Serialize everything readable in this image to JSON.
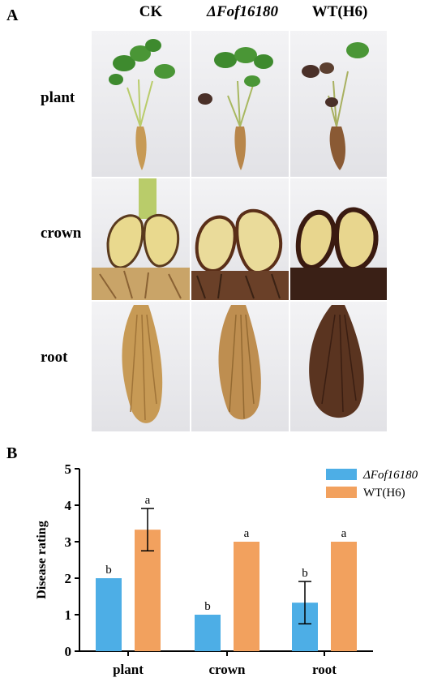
{
  "panel_a": {
    "letter": "A",
    "columns": [
      "CK",
      "ΔFof16180",
      "WT(H6)"
    ],
    "rows": [
      "plant",
      "crown",
      "root"
    ]
  },
  "panel_b": {
    "letter": "B"
  },
  "colors": {
    "mutant": "#4DAEE6",
    "wildtype": "#F2A15E",
    "photo_bg": "#ECECEE",
    "root_light": "#C79A55",
    "root_dark": "#5A3420",
    "leaf": "#3E8A2E",
    "stem": "#B9CC6A",
    "crown_tissue": "#E9D98E"
  },
  "chart_data": {
    "type": "bar",
    "categories": [
      "plant",
      "crown",
      "root"
    ],
    "series": [
      {
        "name": "ΔFof16180",
        "values": [
          2,
          1,
          1.33
        ],
        "errors": [
          0,
          0,
          0.58
        ],
        "letters": [
          "b",
          "b",
          "b"
        ]
      },
      {
        "name": "WT(H6)",
        "values": [
          3.33,
          3,
          3
        ],
        "errors": [
          0.58,
          0,
          0
        ],
        "letters": [
          "a",
          "a",
          "a"
        ]
      }
    ],
    "ylabel": "Disease rating",
    "xlabel": "",
    "ylim": [
      0,
      5
    ],
    "yticks": [
      "0",
      "1",
      "2",
      "3",
      "4",
      "5"
    ],
    "grid": false,
    "legend": "top-right"
  }
}
